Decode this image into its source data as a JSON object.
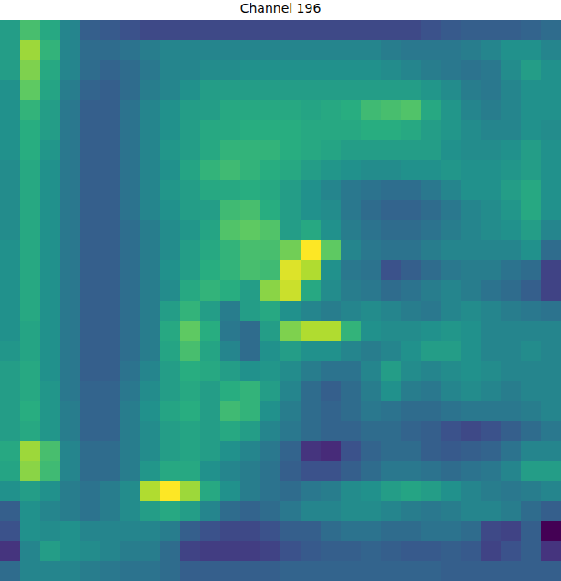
{
  "chart_data": {
    "type": "heatmap",
    "title": "Channel 196",
    "color": "viridis",
    "tick_labels": false,
    "cells": [
      [
        0.55,
        0.7,
        0.6,
        0.45,
        0.3,
        0.28,
        0.25,
        0.22,
        0.22,
        0.22,
        0.22,
        0.22,
        0.22,
        0.22,
        0.22,
        0.22,
        0.22,
        0.22,
        0.22,
        0.22,
        0.22,
        0.25,
        0.28,
        0.3,
        0.3,
        0.3,
        0.32,
        0.35
      ],
      [
        0.55,
        0.85,
        0.65,
        0.45,
        0.35,
        0.35,
        0.38,
        0.42,
        0.45,
        0.45,
        0.45,
        0.45,
        0.45,
        0.45,
        0.45,
        0.45,
        0.45,
        0.45,
        0.45,
        0.42,
        0.4,
        0.4,
        0.4,
        0.42,
        0.45,
        0.5,
        0.5,
        0.45
      ],
      [
        0.55,
        0.8,
        0.6,
        0.45,
        0.35,
        0.32,
        0.35,
        0.4,
        0.45,
        0.45,
        0.48,
        0.48,
        0.5,
        0.5,
        0.5,
        0.5,
        0.5,
        0.5,
        0.5,
        0.48,
        0.45,
        0.42,
        0.4,
        0.38,
        0.4,
        0.48,
        0.55,
        0.5
      ],
      [
        0.5,
        0.75,
        0.58,
        0.42,
        0.32,
        0.3,
        0.35,
        0.42,
        0.45,
        0.5,
        0.55,
        0.55,
        0.55,
        0.55,
        0.55,
        0.55,
        0.55,
        0.55,
        0.55,
        0.55,
        0.55,
        0.52,
        0.48,
        0.42,
        0.4,
        0.45,
        0.5,
        0.5
      ],
      [
        0.5,
        0.65,
        0.55,
        0.4,
        0.3,
        0.3,
        0.38,
        0.45,
        0.5,
        0.55,
        0.55,
        0.6,
        0.6,
        0.6,
        0.6,
        0.58,
        0.6,
        0.62,
        0.68,
        0.7,
        0.72,
        0.6,
        0.52,
        0.45,
        0.42,
        0.45,
        0.5,
        0.5
      ],
      [
        0.5,
        0.62,
        0.55,
        0.4,
        0.3,
        0.3,
        0.38,
        0.45,
        0.5,
        0.55,
        0.6,
        0.6,
        0.62,
        0.62,
        0.62,
        0.6,
        0.6,
        0.6,
        0.62,
        0.62,
        0.6,
        0.55,
        0.52,
        0.48,
        0.45,
        0.45,
        0.5,
        0.48
      ],
      [
        0.5,
        0.62,
        0.52,
        0.4,
        0.3,
        0.3,
        0.38,
        0.45,
        0.52,
        0.55,
        0.6,
        0.65,
        0.65,
        0.65,
        0.62,
        0.6,
        0.58,
        0.55,
        0.55,
        0.55,
        0.55,
        0.55,
        0.5,
        0.48,
        0.48,
        0.5,
        0.55,
        0.5
      ],
      [
        0.48,
        0.6,
        0.5,
        0.4,
        0.3,
        0.3,
        0.38,
        0.45,
        0.5,
        0.58,
        0.65,
        0.68,
        0.65,
        0.62,
        0.6,
        0.55,
        0.52,
        0.5,
        0.48,
        0.48,
        0.5,
        0.5,
        0.52,
        0.5,
        0.5,
        0.52,
        0.55,
        0.5
      ],
      [
        0.48,
        0.6,
        0.5,
        0.4,
        0.3,
        0.3,
        0.38,
        0.45,
        0.52,
        0.55,
        0.6,
        0.6,
        0.62,
        0.6,
        0.55,
        0.5,
        0.45,
        0.4,
        0.38,
        0.36,
        0.36,
        0.4,
        0.45,
        0.5,
        0.5,
        0.55,
        0.6,
        0.5
      ],
      [
        0.48,
        0.6,
        0.5,
        0.4,
        0.3,
        0.3,
        0.38,
        0.45,
        0.5,
        0.55,
        0.55,
        0.68,
        0.7,
        0.62,
        0.55,
        0.5,
        0.48,
        0.4,
        0.35,
        0.32,
        0.32,
        0.35,
        0.4,
        0.45,
        0.48,
        0.52,
        0.6,
        0.5
      ],
      [
        0.48,
        0.6,
        0.5,
        0.4,
        0.3,
        0.3,
        0.36,
        0.42,
        0.48,
        0.52,
        0.58,
        0.72,
        0.75,
        0.72,
        0.55,
        0.6,
        0.5,
        0.42,
        0.38,
        0.35,
        0.35,
        0.38,
        0.42,
        0.45,
        0.48,
        0.5,
        0.55,
        0.45
      ],
      [
        0.5,
        0.6,
        0.5,
        0.4,
        0.3,
        0.3,
        0.36,
        0.42,
        0.48,
        0.55,
        0.6,
        0.65,
        0.7,
        0.7,
        0.78,
        1.0,
        0.75,
        0.45,
        0.4,
        0.38,
        0.38,
        0.42,
        0.45,
        0.45,
        0.45,
        0.45,
        0.5,
        0.35
      ],
      [
        0.5,
        0.6,
        0.5,
        0.4,
        0.3,
        0.3,
        0.36,
        0.42,
        0.5,
        0.55,
        0.62,
        0.65,
        0.7,
        0.68,
        0.95,
        0.88,
        0.5,
        0.4,
        0.38,
        0.25,
        0.3,
        0.35,
        0.4,
        0.42,
        0.42,
        0.38,
        0.35,
        0.2
      ],
      [
        0.5,
        0.6,
        0.5,
        0.4,
        0.3,
        0.3,
        0.36,
        0.42,
        0.48,
        0.6,
        0.65,
        0.62,
        0.55,
        0.82,
        0.92,
        0.6,
        0.48,
        0.42,
        0.4,
        0.35,
        0.38,
        0.42,
        0.45,
        0.42,
        0.38,
        0.35,
        0.3,
        0.2
      ],
      [
        0.5,
        0.6,
        0.5,
        0.4,
        0.3,
        0.3,
        0.36,
        0.42,
        0.55,
        0.65,
        0.55,
        0.42,
        0.55,
        0.6,
        0.5,
        0.45,
        0.42,
        0.45,
        0.48,
        0.45,
        0.42,
        0.4,
        0.45,
        0.48,
        0.45,
        0.42,
        0.4,
        0.38
      ],
      [
        0.5,
        0.58,
        0.5,
        0.4,
        0.3,
        0.3,
        0.36,
        0.42,
        0.6,
        0.75,
        0.62,
        0.4,
        0.35,
        0.55,
        0.8,
        0.88,
        0.88,
        0.65,
        0.5,
        0.48,
        0.48,
        0.5,
        0.52,
        0.5,
        0.45,
        0.45,
        0.45,
        0.45
      ],
      [
        0.52,
        0.58,
        0.5,
        0.4,
        0.3,
        0.3,
        0.36,
        0.42,
        0.58,
        0.7,
        0.58,
        0.45,
        0.35,
        0.5,
        0.55,
        0.5,
        0.5,
        0.45,
        0.42,
        0.45,
        0.5,
        0.55,
        0.55,
        0.5,
        0.45,
        0.45,
        0.48,
        0.45
      ],
      [
        0.55,
        0.6,
        0.5,
        0.4,
        0.3,
        0.3,
        0.38,
        0.45,
        0.55,
        0.62,
        0.6,
        0.55,
        0.5,
        0.52,
        0.48,
        0.42,
        0.38,
        0.38,
        0.45,
        0.55,
        0.48,
        0.45,
        0.48,
        0.5,
        0.48,
        0.45,
        0.45,
        0.45
      ],
      [
        0.55,
        0.6,
        0.52,
        0.4,
        0.32,
        0.32,
        0.4,
        0.48,
        0.55,
        0.6,
        0.55,
        0.62,
        0.65,
        0.55,
        0.45,
        0.35,
        0.3,
        0.35,
        0.42,
        0.5,
        0.42,
        0.4,
        0.45,
        0.48,
        0.45,
        0.42,
        0.45,
        0.45
      ],
      [
        0.55,
        0.62,
        0.52,
        0.42,
        0.32,
        0.32,
        0.42,
        0.5,
        0.58,
        0.62,
        0.55,
        0.68,
        0.65,
        0.5,
        0.42,
        0.35,
        0.32,
        0.35,
        0.4,
        0.38,
        0.35,
        0.35,
        0.38,
        0.4,
        0.4,
        0.4,
        0.42,
        0.45
      ],
      [
        0.55,
        0.6,
        0.52,
        0.42,
        0.32,
        0.32,
        0.42,
        0.48,
        0.55,
        0.58,
        0.55,
        0.6,
        0.55,
        0.45,
        0.4,
        0.35,
        0.32,
        0.32,
        0.35,
        0.35,
        0.32,
        0.3,
        0.25,
        0.22,
        0.25,
        0.3,
        0.35,
        0.4
      ],
      [
        0.6,
        0.85,
        0.7,
        0.45,
        0.35,
        0.35,
        0.42,
        0.48,
        0.55,
        0.58,
        0.55,
        0.5,
        0.45,
        0.4,
        0.32,
        0.15,
        0.12,
        0.25,
        0.32,
        0.35,
        0.35,
        0.3,
        0.28,
        0.3,
        0.32,
        0.38,
        0.45,
        0.45
      ],
      [
        0.58,
        0.82,
        0.68,
        0.45,
        0.35,
        0.35,
        0.42,
        0.52,
        0.6,
        0.6,
        0.5,
        0.45,
        0.42,
        0.38,
        0.3,
        0.25,
        0.25,
        0.3,
        0.35,
        0.4,
        0.4,
        0.38,
        0.35,
        0.38,
        0.4,
        0.45,
        0.55,
        0.55
      ],
      [
        0.5,
        0.55,
        0.5,
        0.42,
        0.38,
        0.42,
        0.48,
        0.88,
        1.0,
        0.85,
        0.6,
        0.5,
        0.42,
        0.38,
        0.35,
        0.4,
        0.42,
        0.48,
        0.5,
        0.55,
        0.58,
        0.55,
        0.5,
        0.45,
        0.42,
        0.4,
        0.42,
        0.45
      ],
      [
        0.3,
        0.5,
        0.45,
        0.42,
        0.38,
        0.42,
        0.48,
        0.55,
        0.6,
        0.55,
        0.45,
        0.35,
        0.32,
        0.35,
        0.4,
        0.45,
        0.45,
        0.48,
        0.48,
        0.45,
        0.42,
        0.4,
        0.42,
        0.45,
        0.45,
        0.42,
        0.35,
        0.3
      ],
      [
        0.25,
        0.5,
        0.48,
        0.5,
        0.45,
        0.45,
        0.45,
        0.45,
        0.42,
        0.3,
        0.25,
        0.22,
        0.22,
        0.25,
        0.3,
        0.3,
        0.35,
        0.38,
        0.38,
        0.35,
        0.35,
        0.38,
        0.38,
        0.35,
        0.22,
        0.2,
        0.3,
        0.0
      ],
      [
        0.15,
        0.45,
        0.55,
        0.5,
        0.48,
        0.45,
        0.42,
        0.42,
        0.35,
        0.2,
        0.18,
        0.18,
        0.18,
        0.2,
        0.25,
        0.28,
        0.3,
        0.3,
        0.32,
        0.3,
        0.28,
        0.28,
        0.3,
        0.28,
        0.2,
        0.25,
        0.3,
        0.15
      ],
      [
        0.35,
        0.45,
        0.45,
        0.45,
        0.42,
        0.4,
        0.38,
        0.38,
        0.35,
        0.3,
        0.3,
        0.3,
        0.3,
        0.3,
        0.32,
        0.32,
        0.32,
        0.32,
        0.32,
        0.32,
        0.32,
        0.32,
        0.3,
        0.3,
        0.3,
        0.3,
        0.3,
        0.3
      ]
    ]
  }
}
